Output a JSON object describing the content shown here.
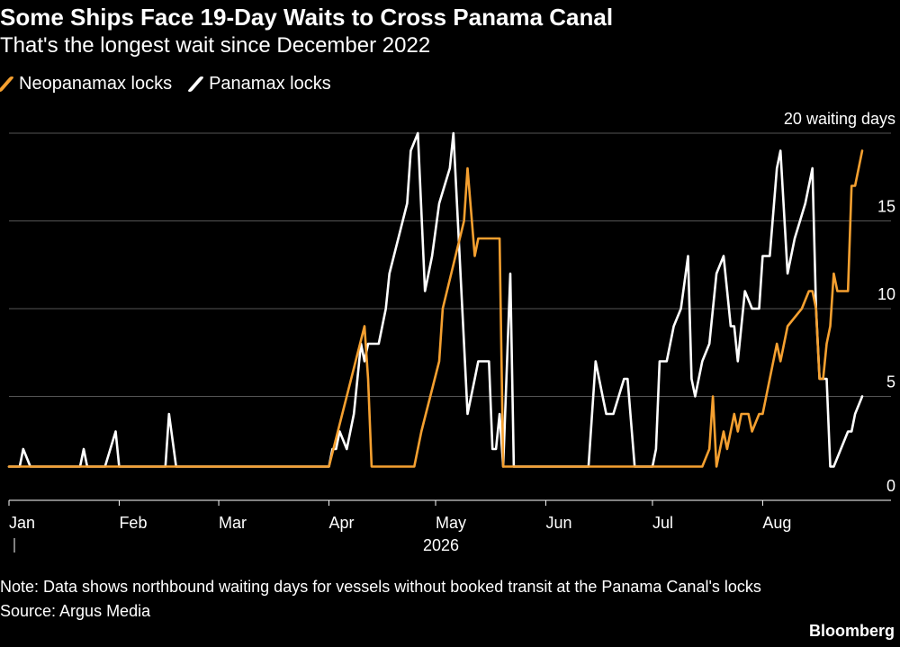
{
  "title": "Some Ships Face 19-Day Waits to Cross Panama Canal",
  "subtitle": "That's the longest wait since December 2022",
  "note": "Note: Data shows northbound waiting days for vessels without booked transit at the Panama Canal's locks",
  "source": "Source: Argus Media",
  "brand": "Bloomberg",
  "colors": {
    "neopanamax": "#f5a030",
    "panamax": "#ffffff",
    "grid": "#555555",
    "background": "#000000"
  },
  "chart_data": {
    "type": "line",
    "y_unit_label": "20 waiting days",
    "ylim": [
      0,
      20
    ],
    "yticks": [
      0,
      5,
      10,
      15,
      20
    ],
    "ytick_labels": [
      "0",
      "5",
      "10",
      "15",
      "20 waiting days"
    ],
    "grid": true,
    "legend_position": "top-left",
    "xlim": [
      "2026-01-01",
      "2026-08-29"
    ],
    "xticks": [
      {
        "date": "2026-01-01",
        "label": "Jan"
      },
      {
        "date": "2026-02-01",
        "label": "Feb"
      },
      {
        "date": "2026-03-01",
        "label": "Mar"
      },
      {
        "date": "2026-04-01",
        "label": "Apr"
      },
      {
        "date": "2026-05-01",
        "label": "May"
      },
      {
        "date": "2026-06-01",
        "label": "Jun"
      },
      {
        "date": "2026-07-01",
        "label": "Jul"
      },
      {
        "date": "2026-08-01",
        "label": "Aug"
      }
    ],
    "year_label": "2026",
    "series": [
      {
        "name": "Neopanamax locks",
        "color": "#f5a030",
        "points": [
          [
            "2026-01-01",
            1
          ],
          [
            "2026-04-01",
            1
          ],
          [
            "2026-04-11",
            9
          ],
          [
            "2026-04-12",
            6
          ],
          [
            "2026-04-13",
            1
          ],
          [
            "2026-04-25",
            1
          ],
          [
            "2026-04-27",
            3
          ],
          [
            "2026-05-02",
            7
          ],
          [
            "2026-05-03",
            10
          ],
          [
            "2026-05-09",
            15
          ],
          [
            "2026-05-10",
            18
          ],
          [
            "2026-05-12",
            13
          ],
          [
            "2026-05-13",
            14
          ],
          [
            "2026-05-18",
            14
          ],
          [
            "2026-05-19",
            14
          ],
          [
            "2026-05-20",
            1
          ],
          [
            "2026-07-15",
            1
          ],
          [
            "2026-07-17",
            2
          ],
          [
            "2026-07-18",
            5
          ],
          [
            "2026-07-19",
            1
          ],
          [
            "2026-07-21",
            3
          ],
          [
            "2026-07-22",
            2
          ],
          [
            "2026-07-24",
            4
          ],
          [
            "2026-07-25",
            3
          ],
          [
            "2026-07-26",
            4
          ],
          [
            "2026-07-28",
            4
          ],
          [
            "2026-07-29",
            3
          ],
          [
            "2026-07-31",
            4
          ],
          [
            "2026-08-01",
            4
          ],
          [
            "2026-08-03",
            6
          ],
          [
            "2026-08-05",
            8
          ],
          [
            "2026-08-06",
            7
          ],
          [
            "2026-08-08",
            9
          ],
          [
            "2026-08-12",
            10
          ],
          [
            "2026-08-14",
            11
          ],
          [
            "2026-08-15",
            11
          ],
          [
            "2026-08-16",
            10
          ],
          [
            "2026-08-17",
            6
          ],
          [
            "2026-08-18",
            6
          ],
          [
            "2026-08-19",
            8
          ],
          [
            "2026-08-20",
            9
          ],
          [
            "2026-08-21",
            12
          ],
          [
            "2026-08-22",
            11
          ],
          [
            "2026-08-23",
            11
          ],
          [
            "2026-08-25",
            11
          ],
          [
            "2026-08-26",
            17
          ],
          [
            "2026-08-27",
            17
          ],
          [
            "2026-08-29",
            19
          ]
        ]
      },
      {
        "name": "Panamax locks",
        "color": "#ffffff",
        "points": [
          [
            "2026-01-01",
            1
          ],
          [
            "2026-01-04",
            1
          ],
          [
            "2026-01-05",
            2
          ],
          [
            "2026-01-07",
            1
          ],
          [
            "2026-01-21",
            1
          ],
          [
            "2026-01-22",
            2
          ],
          [
            "2026-01-23",
            1
          ],
          [
            "2026-01-28",
            1
          ],
          [
            "2026-01-31",
            3
          ],
          [
            "2026-02-01",
            1
          ],
          [
            "2026-02-14",
            1
          ],
          [
            "2026-02-15",
            4
          ],
          [
            "2026-02-17",
            1
          ],
          [
            "2026-04-01",
            1
          ],
          [
            "2026-04-02",
            2
          ],
          [
            "2026-04-03",
            2
          ],
          [
            "2026-04-04",
            3
          ],
          [
            "2026-04-06",
            2
          ],
          [
            "2026-04-08",
            4
          ],
          [
            "2026-04-10",
            8
          ],
          [
            "2026-04-11",
            7
          ],
          [
            "2026-04-12",
            8
          ],
          [
            "2026-04-15",
            8
          ],
          [
            "2026-04-17",
            10
          ],
          [
            "2026-04-18",
            12
          ],
          [
            "2026-04-23",
            16
          ],
          [
            "2026-04-24",
            19
          ],
          [
            "2026-04-26",
            20
          ],
          [
            "2026-04-28",
            11
          ],
          [
            "2026-04-30",
            13
          ],
          [
            "2026-05-02",
            16
          ],
          [
            "2026-05-05",
            18
          ],
          [
            "2026-05-06",
            20
          ],
          [
            "2026-05-09",
            8
          ],
          [
            "2026-05-10",
            4
          ],
          [
            "2026-05-12",
            6
          ],
          [
            "2026-05-13",
            7
          ],
          [
            "2026-05-16",
            7
          ],
          [
            "2026-05-17",
            2
          ],
          [
            "2026-05-18",
            2
          ],
          [
            "2026-05-19",
            4
          ],
          [
            "2026-05-20",
            1
          ],
          [
            "2026-05-22",
            12
          ],
          [
            "2026-05-23",
            1
          ],
          [
            "2026-06-13",
            1
          ],
          [
            "2026-06-15",
            7
          ],
          [
            "2026-06-16",
            6
          ],
          [
            "2026-06-17",
            5
          ],
          [
            "2026-06-18",
            4
          ],
          [
            "2026-06-20",
            4
          ],
          [
            "2026-06-23",
            6
          ],
          [
            "2026-06-24",
            6
          ],
          [
            "2026-06-26",
            1
          ],
          [
            "2026-07-01",
            1
          ],
          [
            "2026-07-02",
            2
          ],
          [
            "2026-07-03",
            7
          ],
          [
            "2026-07-05",
            7
          ],
          [
            "2026-07-07",
            9
          ],
          [
            "2026-07-09",
            10
          ],
          [
            "2026-07-11",
            13
          ],
          [
            "2026-07-12",
            6
          ],
          [
            "2026-07-13",
            5
          ],
          [
            "2026-07-15",
            7
          ],
          [
            "2026-07-17",
            8
          ],
          [
            "2026-07-19",
            12
          ],
          [
            "2026-07-21",
            13
          ],
          [
            "2026-07-23",
            9
          ],
          [
            "2026-07-24",
            9
          ],
          [
            "2026-07-25",
            7
          ],
          [
            "2026-07-27",
            11
          ],
          [
            "2026-07-29",
            10
          ],
          [
            "2026-07-31",
            10
          ],
          [
            "2026-08-01",
            13
          ],
          [
            "2026-08-03",
            13
          ],
          [
            "2026-08-05",
            18
          ],
          [
            "2026-08-06",
            19
          ],
          [
            "2026-08-08",
            12
          ],
          [
            "2026-08-10",
            14
          ],
          [
            "2026-08-13",
            16
          ],
          [
            "2026-08-15",
            18
          ],
          [
            "2026-08-16",
            10
          ],
          [
            "2026-08-17",
            6
          ],
          [
            "2026-08-19",
            6
          ],
          [
            "2026-08-20",
            1
          ],
          [
            "2026-08-21",
            1
          ],
          [
            "2026-08-23",
            2
          ],
          [
            "2026-08-25",
            3
          ],
          [
            "2026-08-26",
            3
          ],
          [
            "2026-08-27",
            4
          ],
          [
            "2026-08-29",
            5
          ]
        ]
      }
    ]
  }
}
